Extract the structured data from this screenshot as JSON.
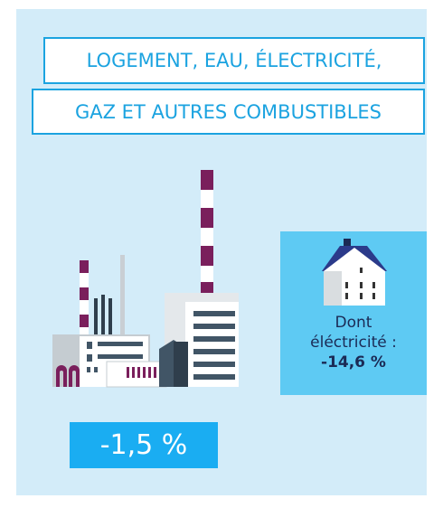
{
  "title_lines": [
    "LOGEMENT, EAU, ÉLECTRICITÉ,",
    "GAZ ET AUTRES COMBUSTIBLES"
  ],
  "main_value": "-1,5 %",
  "detail": {
    "lines": [
      "Dont",
      "éléctricité :"
    ],
    "value": "-14,6 %"
  }
}
